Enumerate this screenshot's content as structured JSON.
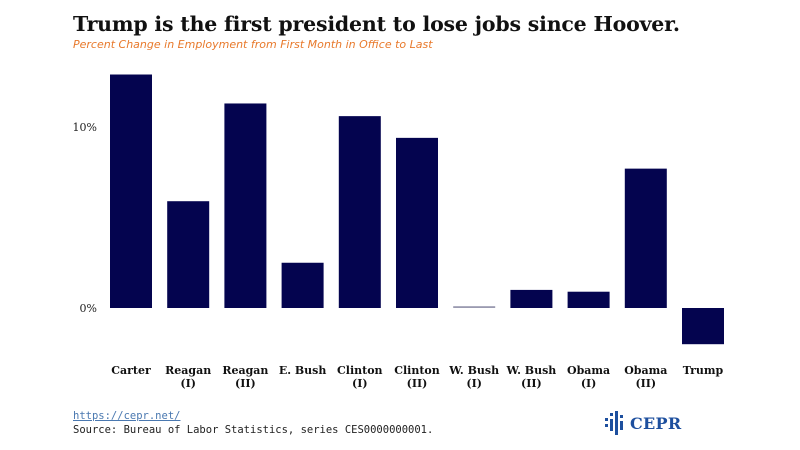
{
  "chart_data": {
    "type": "bar",
    "title": "Trump is the first president to lose jobs since Hoover.",
    "subtitle": "Percent Change in Employment from First Month in Office to Last",
    "categories": [
      [
        "Carter"
      ],
      [
        "Reagan",
        "(I)"
      ],
      [
        "Reagan",
        "(II)"
      ],
      [
        "E. Bush"
      ],
      [
        "Clinton",
        "(I)"
      ],
      [
        "Clinton",
        "(II)"
      ],
      [
        "W. Bush",
        "(I)"
      ],
      [
        "W. Bush",
        "(II)"
      ],
      [
        "Obama",
        "(I)"
      ],
      [
        "Obama",
        "(II)"
      ],
      [
        "Trump"
      ]
    ],
    "values": [
      12.9,
      5.9,
      11.3,
      2.5,
      10.6,
      9.4,
      0.1,
      1.0,
      0.9,
      7.7,
      -2.0
    ],
    "yticks": [
      0,
      10
    ],
    "ytick_labels": [
      "0%",
      "10%"
    ],
    "ylim": [
      -3,
      14
    ],
    "grid": false,
    "bar_color": "#04044f"
  },
  "footer": {
    "source_link": "https://cepr.net/",
    "source_text": "Source: Bureau of Labor Statistics, series CES0000000001.",
    "logo_text": "CEPR"
  }
}
